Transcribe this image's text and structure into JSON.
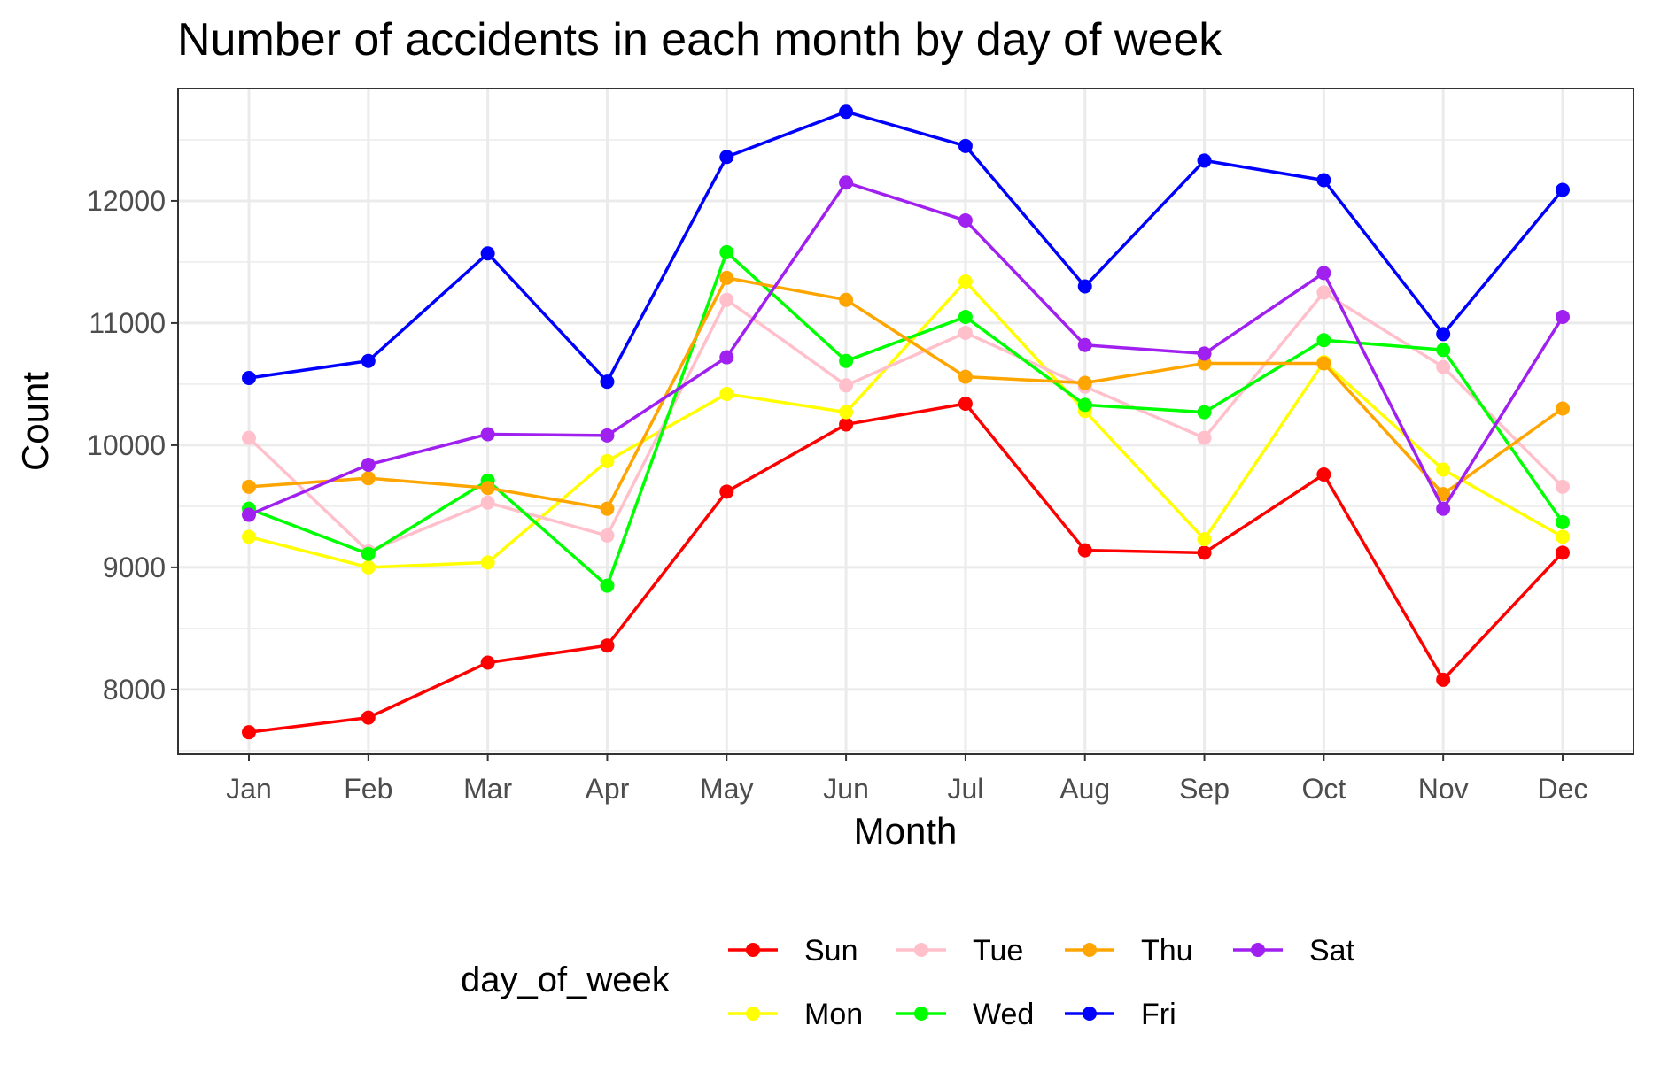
{
  "chart_data": {
    "type": "line",
    "title": "Number of accidents in each month by day of week",
    "xlabel": "Month",
    "ylabel": "Count",
    "categories": [
      "Jan",
      "Feb",
      "Mar",
      "Apr",
      "May",
      "Jun",
      "Jul",
      "Aug",
      "Sep",
      "Oct",
      "Nov",
      "Dec"
    ],
    "ylim": [
      7470,
      12920
    ],
    "yticks": [
      8000,
      9000,
      10000,
      11000,
      12000
    ],
    "grid": true,
    "legend": {
      "title": "day_of_week",
      "position": "bottom",
      "order": [
        "Sun",
        "Mon",
        "Tue",
        "Wed",
        "Thu",
        "Fri",
        "Sat"
      ]
    },
    "series": [
      {
        "name": "Sun",
        "color": "#ff0000",
        "values": [
          7650,
          7770,
          8220,
          8360,
          9620,
          10170,
          10340,
          9140,
          9120,
          9760,
          8080,
          9120
        ]
      },
      {
        "name": "Mon",
        "color": "#ffff00",
        "values": [
          9250,
          9000,
          9040,
          9870,
          10420,
          10270,
          11340,
          10280,
          9230,
          10680,
          9800,
          9250
        ]
      },
      {
        "name": "Tue",
        "color": "#ffc0cb",
        "values": [
          10060,
          9130,
          9530,
          9260,
          11190,
          10490,
          10920,
          10480,
          10060,
          11250,
          10640,
          9660
        ]
      },
      {
        "name": "Wed",
        "color": "#00ff00",
        "values": [
          9480,
          9110,
          9710,
          8850,
          11580,
          10690,
          11050,
          10330,
          10270,
          10860,
          10780,
          9370
        ]
      },
      {
        "name": "Thu",
        "color": "#ffa500",
        "values": [
          9660,
          9730,
          9650,
          9480,
          11370,
          11190,
          10560,
          10510,
          10670,
          10670,
          9600,
          10300
        ]
      },
      {
        "name": "Fri",
        "color": "#0000ff",
        "values": [
          10550,
          10690,
          11570,
          10520,
          12360,
          12730,
          12450,
          11300,
          12330,
          12170,
          10910,
          12090
        ]
      },
      {
        "name": "Sat",
        "color": "#a020f0",
        "values": [
          9430,
          9840,
          10090,
          10080,
          10720,
          12150,
          11840,
          10820,
          10750,
          11410,
          9480,
          11050
        ]
      }
    ]
  }
}
